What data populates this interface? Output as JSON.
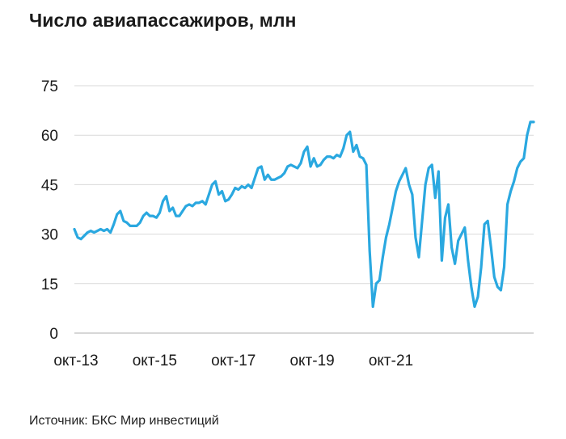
{
  "header": {
    "title": "Число авиапассажиров, млн"
  },
  "footer": {
    "source": "Источник: БКС Мир инвестиций"
  },
  "colors": {
    "line": "#2aa8e0",
    "grid": "#d9d9d9"
  },
  "chart_data": {
    "type": "line",
    "title": "Число авиапассажиров, млн",
    "xlabel": "",
    "ylabel": "",
    "ylim": [
      0,
      75
    ],
    "yticks": [
      0,
      15,
      30,
      45,
      60,
      75
    ],
    "grid": true,
    "legend": "none",
    "xtick_labels": [
      "окт-13",
      "окт-15",
      "окт-17",
      "окт-19",
      "окт-21"
    ],
    "series": [
      {
        "values": [
          31.5,
          29,
          28.5,
          29.5,
          30.5,
          31,
          30.5,
          31,
          31.5,
          31,
          31.5,
          30.5,
          33,
          36,
          37,
          34,
          33.5,
          32.5,
          32.5,
          32.5,
          33.5,
          35.5,
          36.5,
          35.5,
          35.5,
          35,
          36.5,
          40,
          41.5,
          37,
          38,
          35.5,
          35.5,
          37,
          38.5,
          39,
          38.5,
          39.5,
          39.5,
          40,
          39,
          42,
          45,
          46,
          42,
          43,
          40,
          40.5,
          42,
          44,
          43.5,
          44.5,
          44,
          45,
          44,
          47,
          50,
          50.5,
          46.5,
          48,
          46.5,
          46.5,
          47,
          47.5,
          48.5,
          50.5,
          51,
          50.5,
          50,
          51.5,
          55,
          56.5,
          50.5,
          53,
          50.5,
          51,
          52.5,
          53.5,
          53.5,
          53,
          54,
          53.5,
          56,
          60,
          61,
          55,
          57,
          53.5,
          53,
          51,
          25,
          8,
          15,
          16,
          23,
          29,
          33,
          38,
          43,
          46,
          48,
          50,
          45,
          42,
          29,
          23,
          34,
          45,
          50,
          51,
          41,
          49,
          22,
          35,
          39,
          26,
          21,
          28,
          30,
          32,
          22,
          14,
          8,
          11,
          20,
          33,
          34,
          26,
          17,
          14,
          13,
          20,
          39,
          43,
          46,
          50,
          52,
          53,
          60,
          64,
          64
        ]
      }
    ]
  }
}
